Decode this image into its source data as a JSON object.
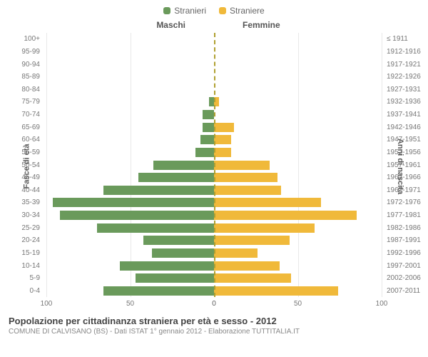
{
  "legend": {
    "male": {
      "label": "Stranieri",
      "color": "#6a9a5b"
    },
    "female": {
      "label": "Straniere",
      "color": "#f0b93a"
    }
  },
  "headers": {
    "male": "Maschi",
    "female": "Femmine",
    "left_axis_title": "Fasce di età",
    "right_axis_title": "Anni di nascita"
  },
  "x_axis": {
    "max": 100,
    "ticks": [
      100,
      50,
      0,
      50,
      100
    ]
  },
  "colors": {
    "male_bar": "#6a9a5b",
    "female_bar": "#f0b93a",
    "center_line": "#b0a030",
    "grid": "#e8e8e8",
    "text": "#666666"
  },
  "age_groups": [
    {
      "age": "100+",
      "birth": "≤ 1911",
      "male": 0,
      "female": 0
    },
    {
      "age": "95-99",
      "birth": "1912-1916",
      "male": 0,
      "female": 0
    },
    {
      "age": "90-94",
      "birth": "1917-1921",
      "male": 0,
      "female": 0
    },
    {
      "age": "85-89",
      "birth": "1922-1926",
      "male": 0,
      "female": 0
    },
    {
      "age": "80-84",
      "birth": "1927-1931",
      "male": 0,
      "female": 0
    },
    {
      "age": "75-79",
      "birth": "1932-1936",
      "male": 3,
      "female": 3
    },
    {
      "age": "70-74",
      "birth": "1937-1941",
      "male": 7,
      "female": 0
    },
    {
      "age": "65-69",
      "birth": "1942-1946",
      "male": 7,
      "female": 12
    },
    {
      "age": "60-64",
      "birth": "1947-1951",
      "male": 8,
      "female": 10
    },
    {
      "age": "55-59",
      "birth": "1952-1956",
      "male": 11,
      "female": 10
    },
    {
      "age": "50-54",
      "birth": "1957-1961",
      "male": 36,
      "female": 33
    },
    {
      "age": "45-49",
      "birth": "1962-1966",
      "male": 45,
      "female": 38
    },
    {
      "age": "40-44",
      "birth": "1967-1971",
      "male": 66,
      "female": 40
    },
    {
      "age": "35-39",
      "birth": "1972-1976",
      "male": 96,
      "female": 64
    },
    {
      "age": "30-34",
      "birth": "1977-1981",
      "male": 92,
      "female": 85
    },
    {
      "age": "25-29",
      "birth": "1982-1986",
      "male": 70,
      "female": 60
    },
    {
      "age": "20-24",
      "birth": "1987-1991",
      "male": 42,
      "female": 45
    },
    {
      "age": "15-19",
      "birth": "1992-1996",
      "male": 37,
      "female": 26
    },
    {
      "age": "10-14",
      "birth": "1997-2001",
      "male": 56,
      "female": 39
    },
    {
      "age": "5-9",
      "birth": "2002-2006",
      "male": 47,
      "female": 46
    },
    {
      "age": "0-4",
      "birth": "2007-2011",
      "male": 66,
      "female": 74
    }
  ],
  "footer": {
    "title": "Popolazione per cittadinanza straniera per età e sesso - 2012",
    "subtitle": "COMUNE DI CALVISANO (BS) - Dati ISTAT 1° gennaio 2012 - Elaborazione TUTTITALIA.IT"
  }
}
